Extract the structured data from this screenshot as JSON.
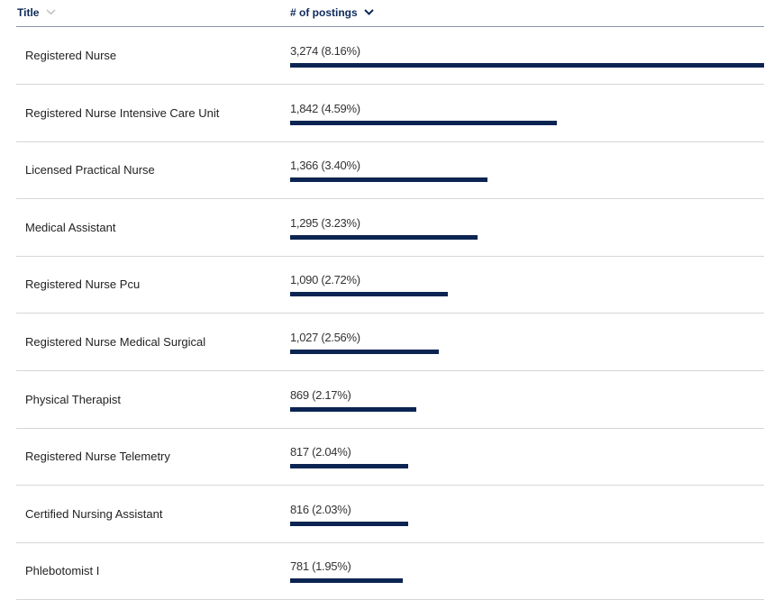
{
  "chart_data": {
    "type": "bar",
    "orientation": "horizontal",
    "columns": [
      "Title",
      "# of postings"
    ],
    "sort": {
      "column": "# of postings",
      "direction": "descending"
    },
    "bar_color": "#0b2452",
    "categories": [
      "Registered Nurse",
      "Registered Nurse Intensive Care Unit",
      "Licensed Practical Nurse",
      "Medical Assistant",
      "Registered Nurse Pcu",
      "Registered Nurse Medical Surgical",
      "Physical Therapist",
      "Registered Nurse Telemetry",
      "Certified Nursing Assistant",
      "Phlebotomist I"
    ],
    "values": [
      3274,
      1842,
      1366,
      1295,
      1090,
      1027,
      869,
      817,
      816,
      781
    ],
    "labels": [
      "3,274 (8.16%)",
      "1,842 (4.59%)",
      "1,366 (3.40%)",
      "1,295 (3.23%)",
      "1,090 (2.72%)",
      "1,027 (2.56%)",
      "869 (2.17%)",
      "817 (2.04%)",
      "816 (2.03%)",
      "781 (1.95%)"
    ]
  }
}
